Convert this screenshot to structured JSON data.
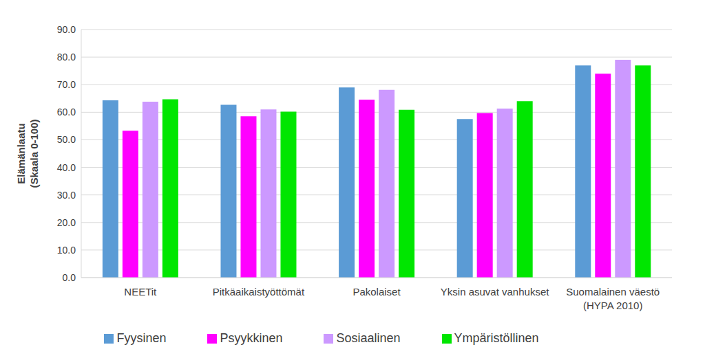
{
  "chart_data": {
    "type": "bar",
    "y_label": "Elämänlaatu (Skaala 0-100)",
    "categories": [
      "NEETit",
      "Pitkäaikaistyöttömät",
      "Pakolaiset",
      "Yksin asuvat vanhukset",
      "Suomalainen väestö (HYPA 2010)"
    ],
    "series": [
      {
        "name": "Fyysinen",
        "color": "#5b9bd5",
        "values": [
          64.3,
          62.7,
          69.0,
          57.5,
          77.0
        ]
      },
      {
        "name": "Psyykkinen",
        "color": "#ff00ff",
        "values": [
          53.3,
          58.5,
          64.6,
          59.7,
          74.0
        ]
      },
      {
        "name": "Sosiaalinen",
        "color": "#cc99ff",
        "values": [
          63.8,
          61.0,
          68.1,
          61.3,
          79.0
        ]
      },
      {
        "name": "Ympäristöllinen",
        "color": "#00e600",
        "values": [
          64.7,
          60.2,
          60.9,
          64.0,
          77.0
        ]
      }
    ],
    "ylim": [
      0,
      90
    ],
    "yticks": [
      {
        "value": 0,
        "label": "0.0"
      },
      {
        "value": 10,
        "label": "10.0"
      },
      {
        "value": 20,
        "label": "20.0"
      },
      {
        "value": 30,
        "label": "30.0"
      },
      {
        "value": 40,
        "label": "40.0"
      },
      {
        "value": 50,
        "label": "50.0"
      },
      {
        "value": 60,
        "label": "60.0"
      },
      {
        "value": 70,
        "label": "70.0"
      },
      {
        "value": 80,
        "label": "80.0"
      },
      {
        "value": 90,
        "label": "90.0"
      }
    ],
    "grid": true,
    "legend": "bottom"
  }
}
